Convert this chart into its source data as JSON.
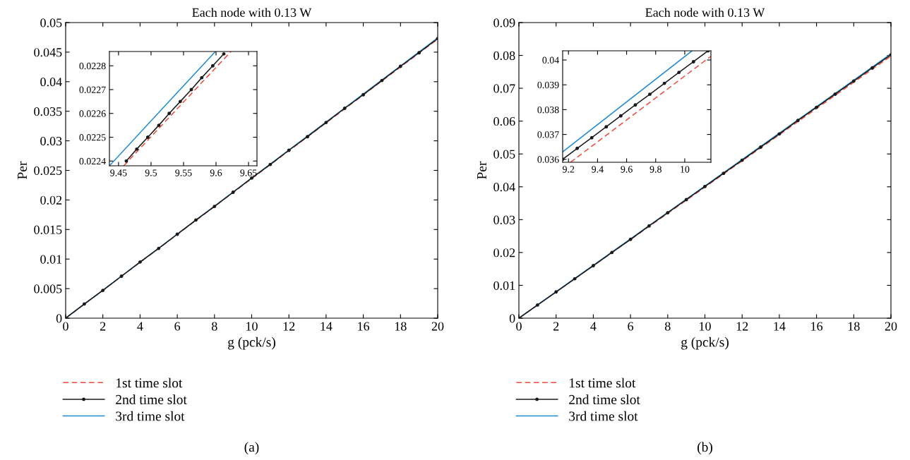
{
  "chart_data": [
    {
      "type": "line",
      "title": "Each node with 0.13 W",
      "xlabel": "g (pck/s)",
      "ylabel": "Per",
      "xlim": [
        0,
        20
      ],
      "ylim": [
        0,
        0.05
      ],
      "xticks": [
        0,
        2,
        4,
        6,
        8,
        10,
        12,
        14,
        16,
        18,
        20
      ],
      "yticks": [
        0,
        0.005,
        0.01,
        0.015,
        0.02,
        0.025,
        0.03,
        0.035,
        0.04,
        0.045,
        0.05
      ],
      "legend": "bottom",
      "grid": false,
      "annotations": [
        "(a)"
      ],
      "series": [
        {
          "name": "1st time slot",
          "color": "#ee4b3a",
          "line_style": "dashed",
          "marker": "none",
          "x": [
            0,
            20
          ],
          "values": [
            0,
            0.0472
          ]
        },
        {
          "name": "2nd time slot",
          "color": "#1a1a1a",
          "line_style": "solid",
          "marker": "circle",
          "x": [
            0,
            1,
            2,
            3,
            4,
            5,
            6,
            7,
            8,
            9,
            10,
            11,
            12,
            13,
            14,
            15,
            16,
            17,
            18,
            19,
            20
          ],
          "values": [
            0,
            0.0024,
            0.0047,
            0.0071,
            0.0095,
            0.0118,
            0.0142,
            0.0166,
            0.0189,
            0.0213,
            0.0237,
            0.026,
            0.0284,
            0.0307,
            0.0331,
            0.0355,
            0.0378,
            0.0402,
            0.0426,
            0.0449,
            0.0473
          ]
        },
        {
          "name": "3rd time slot",
          "color": "#1f8ad0",
          "line_style": "solid",
          "marker": "none",
          "x": [
            0,
            20
          ],
          "values": [
            0,
            0.0474
          ]
        }
      ]
    },
    {
      "type": "line",
      "xlim": [
        9.436,
        9.663
      ],
      "ylim": [
        0.02238,
        0.02286
      ],
      "xticks": [
        9.45,
        9.5,
        9.55,
        9.6,
        9.65
      ],
      "yticks": [
        0.0224,
        0.0225,
        0.0226,
        0.0227,
        0.0228
      ],
      "legend": false,
      "grid": false,
      "series": [
        {
          "color": "#ee4b3a",
          "line_style": "dashed",
          "marker": "none",
          "x": [
            9.458,
            9.623
          ],
          "values": [
            0.02238,
            0.02286
          ]
        },
        {
          "color": "#1a1a1a",
          "line_style": "solid",
          "marker": "circle",
          "x": [
            9.462,
            9.478,
            9.495,
            9.512,
            9.528,
            9.545,
            9.562,
            9.578,
            9.595,
            9.612
          ],
          "values": [
            0.0224,
            0.02245,
            0.0225,
            0.02255,
            0.0226,
            0.02265,
            0.0227,
            0.02275,
            0.0228,
            0.02285
          ]
        },
        {
          "color": "#1f8ad0",
          "line_style": "solid",
          "marker": "none",
          "x": [
            9.436,
            9.599
          ],
          "values": [
            0.02238,
            0.02286
          ]
        }
      ]
    },
    {
      "type": "line",
      "title": "Each node with 0.13 W",
      "xlabel": "g (pck/s)",
      "ylabel": "Per",
      "xlim": [
        0,
        20
      ],
      "ylim": [
        0,
        0.09
      ],
      "xticks": [
        0,
        2,
        4,
        6,
        8,
        10,
        12,
        14,
        16,
        18,
        20
      ],
      "yticks": [
        0,
        0.01,
        0.02,
        0.03,
        0.04,
        0.05,
        0.06,
        0.07,
        0.08,
        0.09
      ],
      "legend": "bottom",
      "grid": false,
      "annotations": [
        "(b)"
      ],
      "series": [
        {
          "name": "1st time slot",
          "color": "#ee4b3a",
          "line_style": "dashed",
          "marker": "none",
          "x": [
            0,
            20
          ],
          "values": [
            0,
            0.0798
          ]
        },
        {
          "name": "2nd time slot",
          "color": "#1a1a1a",
          "line_style": "solid",
          "marker": "circle",
          "x": [
            0,
            1,
            2,
            3,
            4,
            5,
            6,
            7,
            8,
            9,
            10,
            11,
            12,
            13,
            14,
            15,
            16,
            17,
            18,
            19,
            20
          ],
          "values": [
            0,
            0.004,
            0.008,
            0.012,
            0.016,
            0.02,
            0.024,
            0.0281,
            0.0321,
            0.0361,
            0.0401,
            0.0441,
            0.0481,
            0.0521,
            0.0561,
            0.0602,
            0.0642,
            0.0682,
            0.0722,
            0.0762,
            0.0802
          ]
        },
        {
          "name": "3rd time slot",
          "color": "#1f8ad0",
          "line_style": "solid",
          "marker": "none",
          "x": [
            0,
            20
          ],
          "values": [
            0,
            0.0805
          ]
        }
      ]
    },
    {
      "type": "line",
      "xlim": [
        9.16,
        10.18
      ],
      "ylim": [
        0.03588,
        0.04037
      ],
      "xticks": [
        9.2,
        9.4,
        9.6,
        9.8,
        10
      ],
      "yticks": [
        0.036,
        0.037,
        0.038,
        0.039,
        0.04
      ],
      "legend": false,
      "grid": false,
      "series": [
        {
          "color": "#ee4b3a",
          "line_style": "dashed",
          "marker": "none",
          "x": [
            9.214,
            10.18
          ],
          "values": [
            0.03588,
            0.04015
          ]
        },
        {
          "color": "#1a1a1a",
          "line_style": "solid",
          "marker": "circle",
          "x": [
            9.16,
            9.26,
            9.36,
            9.46,
            9.56,
            9.66,
            9.76,
            9.86,
            9.96,
            10.06,
            10.16
          ],
          "values": [
            0.036,
            0.03644,
            0.03687,
            0.03731,
            0.03775,
            0.03819,
            0.03862,
            0.03906,
            0.0395,
            0.03993,
            0.04037
          ]
        },
        {
          "color": "#1f8ad0",
          "line_style": "solid",
          "marker": "none",
          "x": [
            9.16,
            10.05
          ],
          "values": [
            0.0363,
            0.04037
          ]
        }
      ]
    }
  ]
}
